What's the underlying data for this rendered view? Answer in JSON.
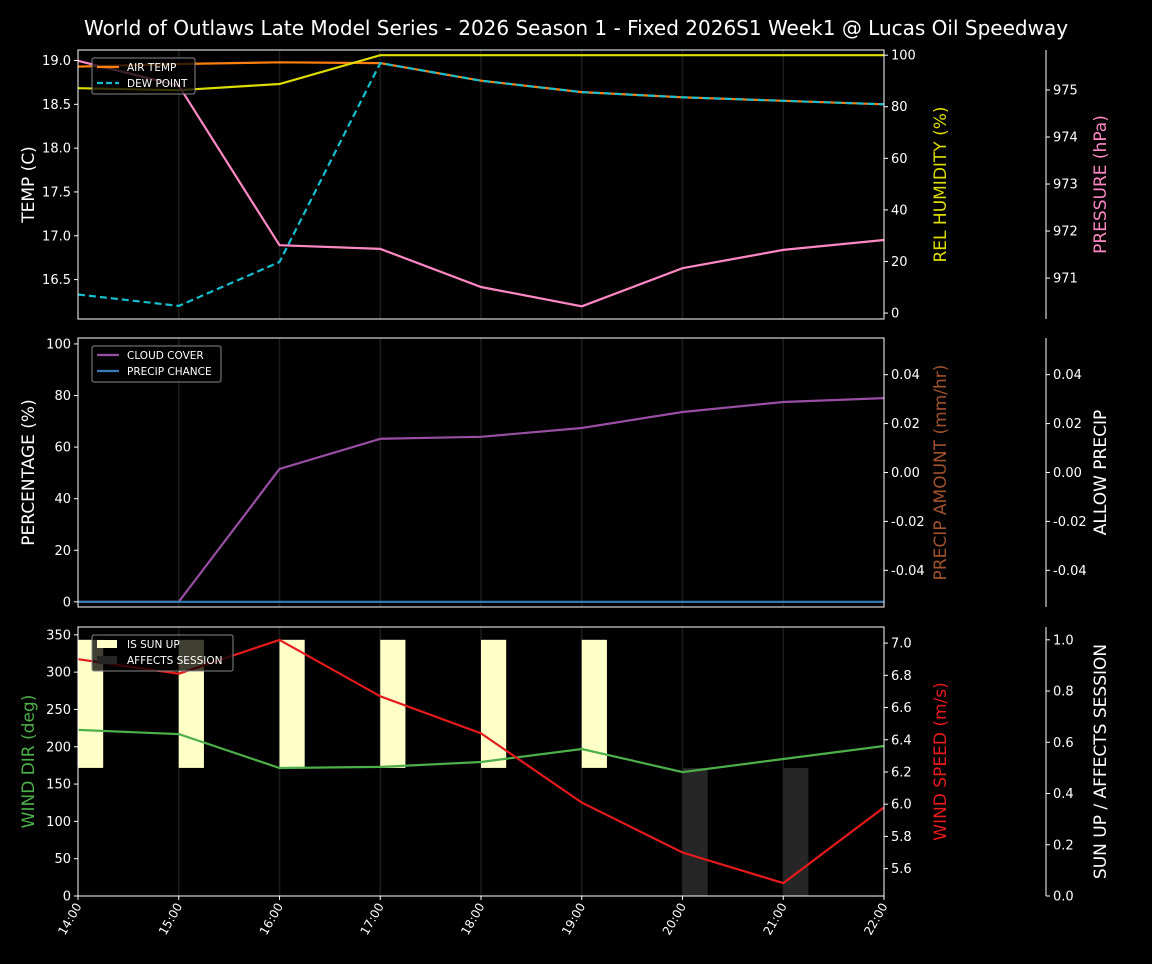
{
  "chart_data": {
    "type": "line",
    "title": "World of Outlaws Late Model Series - 2026 Season 1 - Fixed 2026S1 Week1 @ Lucas Oil Speedway",
    "x": [
      "14:00",
      "15:00",
      "16:00",
      "17:00",
      "18:00",
      "19:00",
      "20:00",
      "21:00",
      "22:00"
    ],
    "grid": "vertical",
    "panels": [
      {
        "legend": "upper-left",
        "axes": [
          {
            "side": "left",
            "label": "TEMP (C)",
            "color": "#ffffff",
            "ylim": [
              16.05,
              19.12
            ],
            "ticks": [
              16.5,
              17.0,
              17.5,
              18.0,
              18.5,
              19.0
            ],
            "fmt": 1
          },
          {
            "side": "right",
            "label": "REL HUMIDITY (%)",
            "color": "#dddd00",
            "ylim": [
              -2.3,
              102
            ],
            "ticks": [
              0,
              20,
              40,
              60,
              80,
              100
            ],
            "fmt": 0
          },
          {
            "side": "outer",
            "label": "PRESSURE (hPa)",
            "color": "#ff88c4",
            "ylim": [
              970.13,
              975.85
            ],
            "ticks": [
              971,
              972,
              973,
              974,
              975
            ],
            "fmt": 0
          }
        ],
        "series": [
          {
            "name": "AIR TEMP",
            "axis": 0,
            "color": "#ff7f0e",
            "dash": false,
            "legend": true,
            "values": [
              18.93,
              18.96,
              18.98,
              18.97,
              18.77,
              18.64,
              18.58,
              18.54,
              18.5
            ]
          },
          {
            "name": "DEW POINT",
            "axis": 0,
            "color": "#17becf",
            "dash": true,
            "legend": true,
            "values": [
              16.33,
              16.2,
              16.7,
              18.97,
              18.77,
              18.64,
              18.58,
              18.54,
              18.5
            ]
          },
          {
            "axis": 1,
            "color": "#dddd00",
            "dash": false,
            "legend": false,
            "values": [
              87.2,
              86.4,
              88.8,
              100,
              100,
              100,
              100,
              100,
              100
            ]
          },
          {
            "axis": 2,
            "color": "#ff88c4",
            "dash": false,
            "legend": false,
            "values": [
              975.62,
              975.09,
              971.7,
              971.62,
              970.81,
              970.4,
              971.21,
              971.6,
              971.81
            ]
          }
        ]
      },
      {
        "legend": "upper-left",
        "axes": [
          {
            "side": "left",
            "label": "PERCENTAGE (%)",
            "color": "#ffffff",
            "ylim": [
              -2,
              102.3
            ],
            "ticks": [
              0,
              20,
              40,
              60,
              80,
              100
            ],
            "fmt": 0
          },
          {
            "side": "right",
            "label": "PRECIP AMOUNT (mm/hr)",
            "color": "#a0522d",
            "ylim": [
              -0.055,
              0.055
            ],
            "ticks": [
              -0.04,
              -0.02,
              0.0,
              0.02,
              0.04
            ],
            "fmt": 2
          },
          {
            "side": "outer",
            "label": "ALLOW PRECIP",
            "color": "#ffffff",
            "ylim": [
              -0.055,
              0.055
            ],
            "ticks": [
              -0.04,
              -0.02,
              0.0,
              0.02,
              0.04
            ],
            "fmt": 2
          }
        ],
        "series": [
          {
            "name": "CLOUD COVER",
            "axis": 0,
            "color": "#984ea3",
            "dash": false,
            "legend": true,
            "values": [
              0,
              0,
              51.5,
              63.2,
              64,
              67.4,
              73.6,
              77.5,
              79
            ]
          },
          {
            "name": "PRECIP CHANCE",
            "axis": 0,
            "color": "#377eb8",
            "dash": false,
            "legend": true,
            "values": [
              0,
              0,
              0,
              0,
              0,
              0,
              0,
              0,
              0
            ]
          }
        ]
      },
      {
        "legend": "upper-left",
        "axes": [
          {
            "side": "left",
            "label": "WIND DIR (deg)",
            "color": "#4daf4a",
            "ylim": [
              0,
              360.5
            ],
            "ticks": [
              0,
              50,
              100,
              150,
              200,
              250,
              300,
              350
            ],
            "fmt": 0
          },
          {
            "side": "right",
            "label": "WIND SPEED (m/s)",
            "color": "#e41a1c",
            "ylim": [
              5.43,
              7.1
            ],
            "ticks": [
              5.6,
              5.8,
              6.0,
              6.2,
              6.4,
              6.6,
              6.8,
              7.0
            ],
            "fmt": 1
          },
          {
            "side": "outer",
            "label": "SUN UP / AFFECTS SESSION",
            "color": "#ffffff",
            "ylim": [
              0,
              1.05
            ],
            "ticks": [
              0.0,
              0.2,
              0.4,
              0.6,
              0.8,
              1.0
            ],
            "fmt": 1
          }
        ],
        "bars": [
          {
            "name": "IS SUN UP",
            "axis": 2,
            "color": "#ffffc8",
            "values": [
              1,
              1,
              1,
              1,
              1,
              1,
              0,
              0,
              0
            ]
          },
          {
            "name": "AFFECTS SESSION",
            "axis": 2,
            "color": "#262626",
            "values": [
              0,
              0,
              0,
              0,
              0,
              0,
              1,
              1,
              0
            ]
          }
        ],
        "series": [
          {
            "axis": 0,
            "color": "#4daf4a",
            "dash": false,
            "legend": false,
            "values": [
              222.6,
              217,
              171.6,
              173,
              179.6,
              197,
              166,
              183.6,
              201
            ]
          },
          {
            "axis": 1,
            "color": "#e41a1c",
            "dash": false,
            "legend": false,
            "values": [
              6.9,
              6.81,
              7.02,
              6.67,
              6.44,
              6.01,
              5.7,
              5.51,
              5.98
            ]
          }
        ]
      }
    ]
  }
}
